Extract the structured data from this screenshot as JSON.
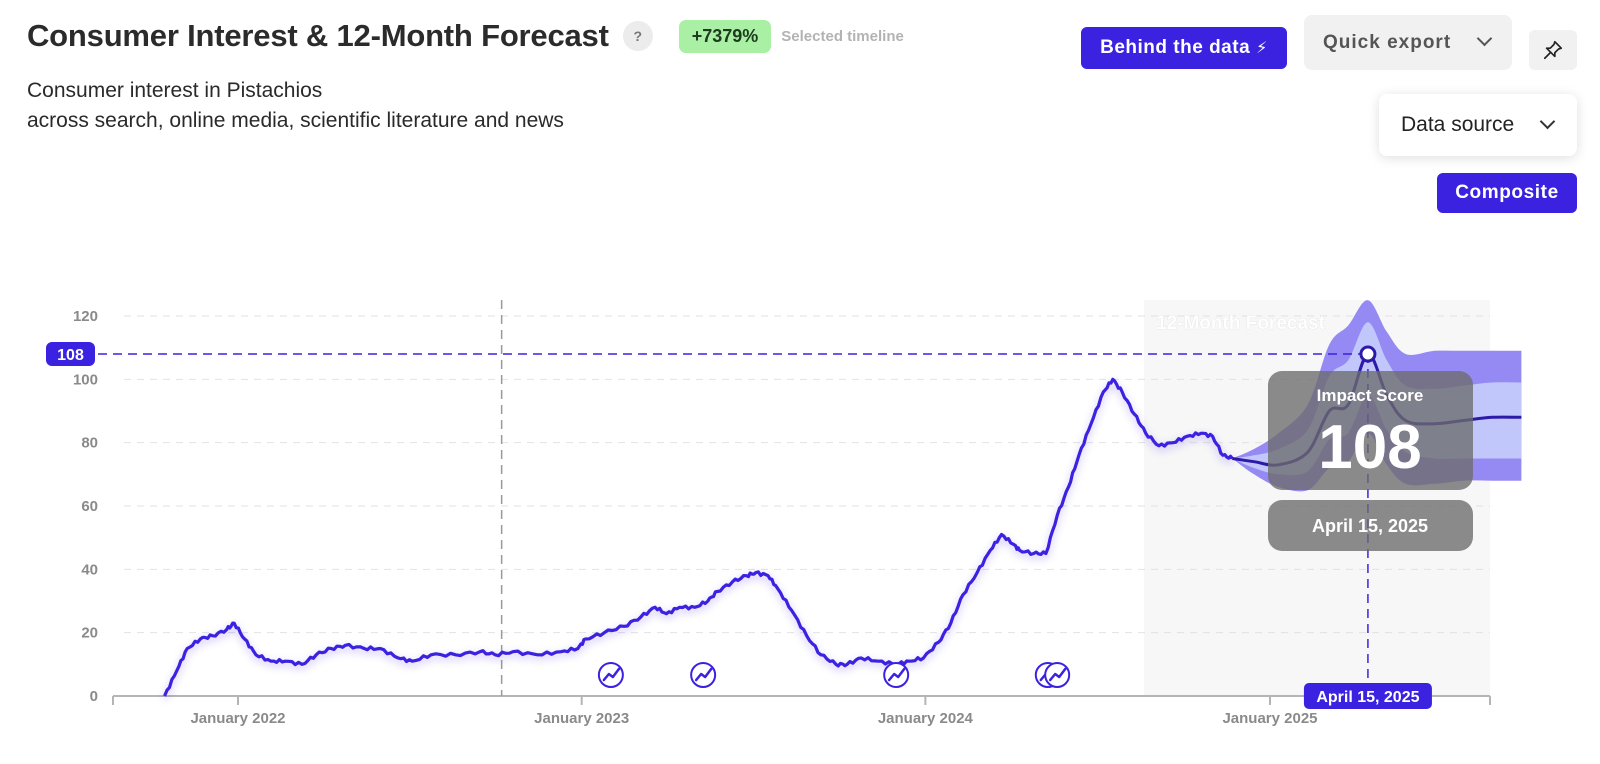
{
  "header": {
    "title": "Consumer Interest & 12-Month Forecast",
    "help": "?",
    "growth_badge": "+7379%",
    "growth_caption": "Selected timeline",
    "subtitle_line1": "Consumer interest in Pistachios",
    "subtitle_line2": "across search, online media, scientific literature and news"
  },
  "toolbar": {
    "behind_label": "Behind the data",
    "export_label": "Quick export",
    "pin_icon": "pin-icon"
  },
  "controls": {
    "source_label": "Data source",
    "source_selected": "Composite"
  },
  "colors": {
    "accent": "#3b22e0",
    "line": "#3b22e0",
    "band_outer": "#8f84f2",
    "band_inner": "#c3c9fb",
    "badge_green": "#a9f0a4",
    "forecast_bg": "#f7f7f7"
  },
  "chart_data": {
    "type": "line",
    "ylim": [
      0,
      120
    ],
    "yticks": [
      "0",
      "20",
      "40",
      "60",
      "80",
      "100",
      "120"
    ],
    "xticks": [
      "January 2022",
      "January 2023",
      "January 2024",
      "January 2025"
    ],
    "forecast_label": "12-Month Forecast",
    "series": [
      {
        "values": [
          [
            "2021-10-15",
            0
          ],
          [
            "2021-10-28",
            8
          ],
          [
            "2021-11-08",
            15
          ],
          [
            "2021-11-22",
            18
          ],
          [
            "2021-12-05",
            19
          ],
          [
            "2021-12-20",
            21
          ],
          [
            "2021-12-28",
            23
          ],
          [
            "2022-01-08",
            18
          ],
          [
            "2022-01-20",
            13
          ],
          [
            "2022-02-05",
            11
          ],
          [
            "2022-02-20",
            11
          ],
          [
            "2022-03-10",
            10
          ],
          [
            "2022-03-25",
            13
          ],
          [
            "2022-04-10",
            15
          ],
          [
            "2022-04-25",
            16
          ],
          [
            "2022-05-15",
            15
          ],
          [
            "2022-06-01",
            15
          ],
          [
            "2022-06-20",
            12
          ],
          [
            "2022-07-05",
            11
          ],
          [
            "2022-07-25",
            13
          ],
          [
            "2022-08-20",
            13
          ],
          [
            "2022-09-15",
            14
          ],
          [
            "2022-10-01",
            13
          ],
          [
            "2022-10-20",
            14
          ],
          [
            "2022-11-15",
            13
          ],
          [
            "2022-12-10",
            14
          ],
          [
            "2022-12-28",
            15
          ],
          [
            "2023-01-05",
            18
          ],
          [
            "2023-01-25",
            20
          ],
          [
            "2023-02-15",
            22
          ],
          [
            "2023-03-05",
            25
          ],
          [
            "2023-03-20",
            28
          ],
          [
            "2023-04-01",
            26
          ],
          [
            "2023-04-15",
            28
          ],
          [
            "2023-05-01",
            28
          ],
          [
            "2023-05-15",
            30
          ],
          [
            "2023-05-25",
            33
          ],
          [
            "2023-06-10",
            36
          ],
          [
            "2023-06-25",
            38
          ],
          [
            "2023-07-05",
            39
          ],
          [
            "2023-07-18",
            38
          ],
          [
            "2023-07-28",
            34
          ],
          [
            "2023-08-12",
            27
          ],
          [
            "2023-08-28",
            19
          ],
          [
            "2023-09-12",
            13
          ],
          [
            "2023-09-28",
            10
          ],
          [
            "2023-10-10",
            10
          ],
          [
            "2023-10-25",
            12
          ],
          [
            "2023-11-12",
            11
          ],
          [
            "2023-12-01",
            10
          ],
          [
            "2023-12-15",
            11
          ],
          [
            "2023-12-30",
            12
          ],
          [
            "2024-01-15",
            17
          ],
          [
            "2024-01-28",
            23
          ],
          [
            "2024-02-10",
            32
          ],
          [
            "2024-02-25",
            39
          ],
          [
            "2024-03-10",
            46
          ],
          [
            "2024-03-22",
            51
          ],
          [
            "2024-04-03",
            48
          ],
          [
            "2024-04-10",
            46
          ],
          [
            "2024-04-25",
            45
          ],
          [
            "2024-05-08",
            45
          ],
          [
            "2024-05-20",
            57
          ],
          [
            "2024-06-01",
            66
          ],
          [
            "2024-06-12",
            76
          ],
          [
            "2024-06-25",
            86
          ],
          [
            "2024-07-08",
            96
          ],
          [
            "2024-07-18",
            100
          ],
          [
            "2024-07-28",
            96
          ],
          [
            "2024-08-10",
            89
          ],
          [
            "2024-08-22",
            83
          ],
          [
            "2024-09-05",
            79
          ],
          [
            "2024-09-20",
            80
          ],
          [
            "2024-10-05",
            82
          ],
          [
            "2024-10-20",
            83
          ],
          [
            "2024-11-01",
            82
          ],
          [
            "2024-11-12",
            76
          ],
          [
            "2024-11-22",
            75
          ]
        ]
      },
      {
        "forecast": true,
        "values": [
          [
            "2024-11-22",
            75
          ],
          [
            "2024-12-15",
            74
          ],
          [
            "2025-01-10",
            73
          ],
          [
            "2025-02-10",
            77
          ],
          [
            "2025-03-05",
            90
          ],
          [
            "2025-03-25",
            92
          ],
          [
            "2025-04-15",
            108
          ],
          [
            "2025-05-05",
            95
          ],
          [
            "2025-05-25",
            87
          ],
          [
            "2025-06-25",
            86
          ],
          [
            "2025-07-25",
            87
          ],
          [
            "2025-08-25",
            88
          ],
          [
            "2025-09-25",
            88
          ]
        ],
        "band_inner": [
          [
            "2024-11-22",
            75,
            75
          ],
          [
            "2024-12-15",
            72,
            76
          ],
          [
            "2025-01-10",
            70,
            78
          ],
          [
            "2025-02-10",
            71,
            84
          ],
          [
            "2025-03-05",
            81,
            101
          ],
          [
            "2025-03-25",
            83,
            106
          ],
          [
            "2025-04-15",
            95,
            118
          ],
          [
            "2025-05-05",
            84,
            106
          ],
          [
            "2025-05-25",
            77,
            98
          ],
          [
            "2025-06-25",
            75,
            97
          ],
          [
            "2025-07-25",
            75,
            98
          ],
          [
            "2025-08-25",
            75,
            99
          ],
          [
            "2025-09-25",
            75,
            99
          ]
        ],
        "band_outer": [
          [
            "2024-11-22",
            75,
            75
          ],
          [
            "2024-12-15",
            70,
            78
          ],
          [
            "2025-01-10",
            66,
            83
          ],
          [
            "2025-02-10",
            65,
            92
          ],
          [
            "2025-03-05",
            72,
            111
          ],
          [
            "2025-03-25",
            74,
            117
          ],
          [
            "2025-04-15",
            83,
            125
          ],
          [
            "2025-05-05",
            73,
            115
          ],
          [
            "2025-05-25",
            67,
            108
          ],
          [
            "2025-06-25",
            67,
            109
          ],
          [
            "2025-07-25",
            68,
            109
          ],
          [
            "2025-08-25",
            68,
            109
          ],
          [
            "2025-09-25",
            68,
            109
          ]
        ]
      }
    ],
    "event_markers": [
      "2023-02-01",
      "2023-05-10",
      "2023-12-01",
      "2024-05-10",
      "2024-05-20"
    ],
    "hover": {
      "date": "April 15, 2025",
      "value": 108,
      "value_label": "108",
      "tooltip_title": "Impact Score"
    }
  }
}
